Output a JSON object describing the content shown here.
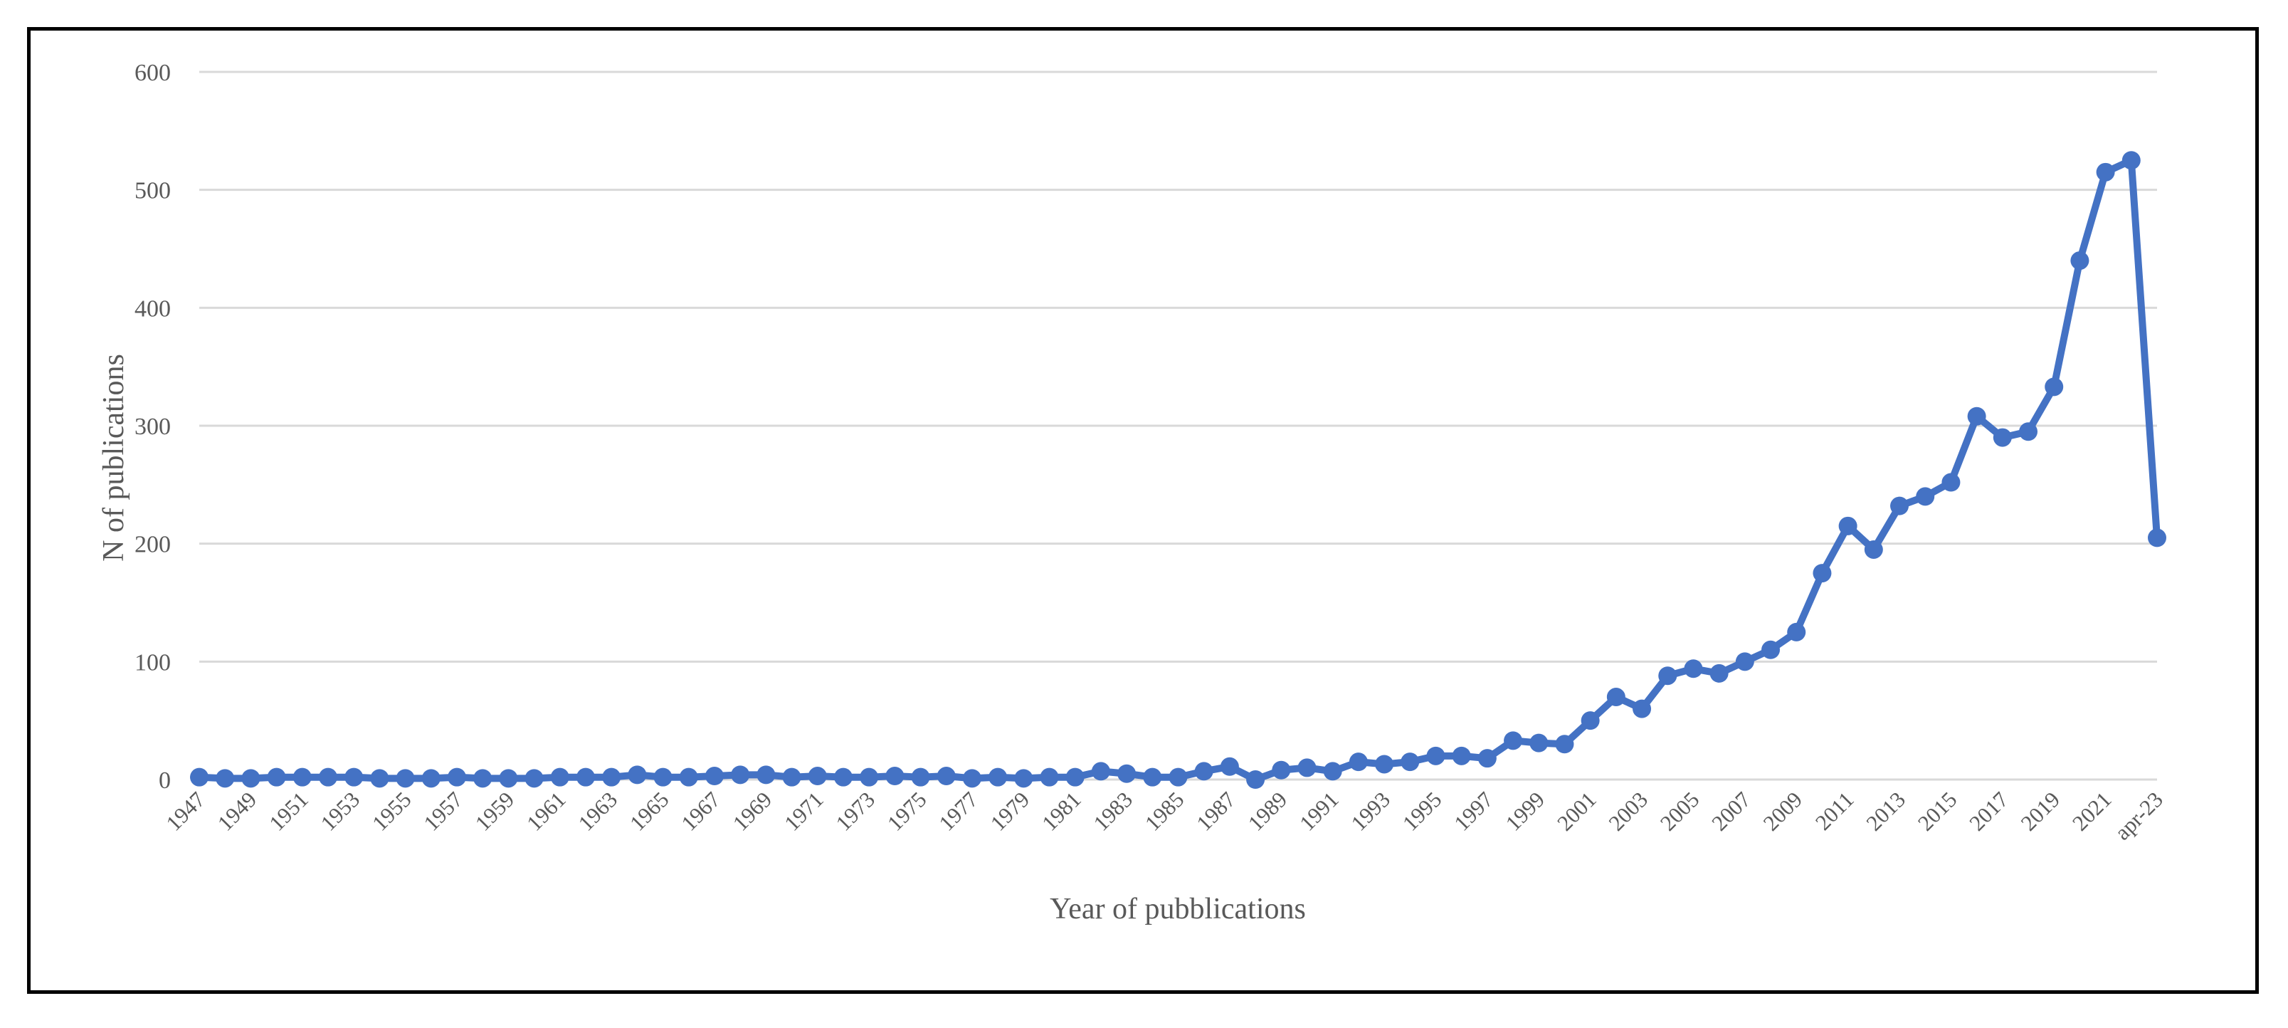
{
  "chart_data": {
    "type": "line",
    "xlabel": "Year of pubblications",
    "ylabel": "N of publications",
    "ylim": [
      0,
      600
    ],
    "yticks": [
      0,
      100,
      200,
      300,
      400,
      500,
      600
    ],
    "grid": true,
    "legend": "none",
    "line_color": "#4472c4",
    "categories": [
      "1947",
      "1948",
      "1949",
      "1950",
      "1951",
      "1952",
      "1953",
      "1954",
      "1955",
      "1956",
      "1957",
      "1958",
      "1959",
      "1960",
      "1961",
      "1962",
      "1963",
      "1964",
      "1965",
      "1966",
      "1967",
      "1968",
      "1969",
      "1970",
      "1971",
      "1972",
      "1973",
      "1974",
      "1975",
      "1976",
      "1977",
      "1978",
      "1979",
      "1980",
      "1981",
      "1982",
      "1983",
      "1984",
      "1985",
      "1986",
      "1987",
      "1988",
      "1989",
      "1990",
      "1991",
      "1992",
      "1993",
      "1994",
      "1995",
      "1996",
      "1997",
      "1998",
      "1999",
      "2000",
      "2001",
      "2002",
      "2003",
      "2004",
      "2005",
      "2006",
      "2007",
      "2008",
      "2009",
      "2010",
      "2011",
      "2012",
      "2013",
      "2014",
      "2015",
      "2016",
      "2017",
      "2018",
      "2019",
      "2020",
      "2021",
      "2022",
      "apr-23"
    ],
    "x_tick_labels": [
      "1947",
      "1949",
      "1951",
      "1953",
      "1955",
      "1957",
      "1959",
      "1961",
      "1963",
      "1965",
      "1967",
      "1969",
      "1971",
      "1973",
      "1975",
      "1977",
      "1979",
      "1981",
      "1983",
      "1985",
      "1987",
      "1989",
      "1991",
      "1993",
      "1995",
      "1997",
      "1999",
      "2001",
      "2003",
      "2005",
      "2007",
      "2009",
      "2011",
      "2013",
      "2015",
      "2017",
      "2019",
      "2021",
      "apr-23"
    ],
    "values": [
      2,
      1,
      1,
      2,
      2,
      2,
      2,
      1,
      1,
      1,
      2,
      1,
      1,
      1,
      2,
      2,
      2,
      4,
      2,
      2,
      3,
      4,
      4,
      2,
      3,
      2,
      2,
      3,
      2,
      3,
      1,
      2,
      1,
      2,
      2,
      7,
      5,
      2,
      2,
      7,
      11,
      0,
      8,
      10,
      7,
      15,
      13,
      15,
      20,
      20,
      18,
      33,
      31,
      30,
      50,
      70,
      60,
      88,
      94,
      90,
      100,
      110,
      125,
      175,
      215,
      195,
      232,
      240,
      252,
      308,
      290,
      295,
      333,
      440,
      515,
      525,
      205
    ]
  }
}
